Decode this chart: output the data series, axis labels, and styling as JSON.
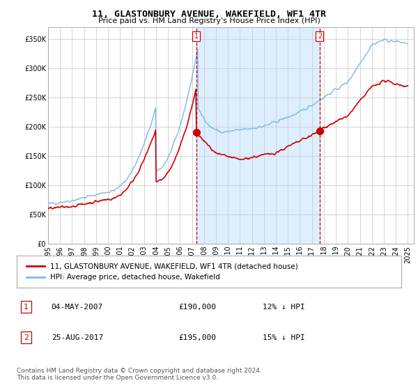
{
  "title": "11, GLASTONBURY AVENUE, WAKEFIELD, WF1 4TR",
  "subtitle": "Price paid vs. HM Land Registry's House Price Index (HPI)",
  "legend_line1": "11, GLASTONBURY AVENUE, WAKEFIELD, WF1 4TR (detached house)",
  "legend_line2": "HPI: Average price, detached house, Wakefield",
  "transaction1_date": "04-MAY-2007",
  "transaction1_price": "£190,000",
  "transaction1_hpi": "12% ↓ HPI",
  "transaction1_year": 2007.35,
  "transaction1_value": 190000,
  "transaction2_date": "25-AUG-2017",
  "transaction2_price": "£195,000",
  "transaction2_hpi": "15% ↓ HPI",
  "transaction2_year": 2017.65,
  "transaction2_value": 195000,
  "hpi_color": "#7ab8e8",
  "price_color": "#cc0000",
  "marker_color": "#cc0000",
  "shade_color": "#ddeeff",
  "background_color": "#ffffff",
  "grid_color": "#cccccc",
  "ylim_max": 370000,
  "footnote": "Contains HM Land Registry data © Crown copyright and database right 2024.\nThis data is licensed under the Open Government Licence v3.0."
}
